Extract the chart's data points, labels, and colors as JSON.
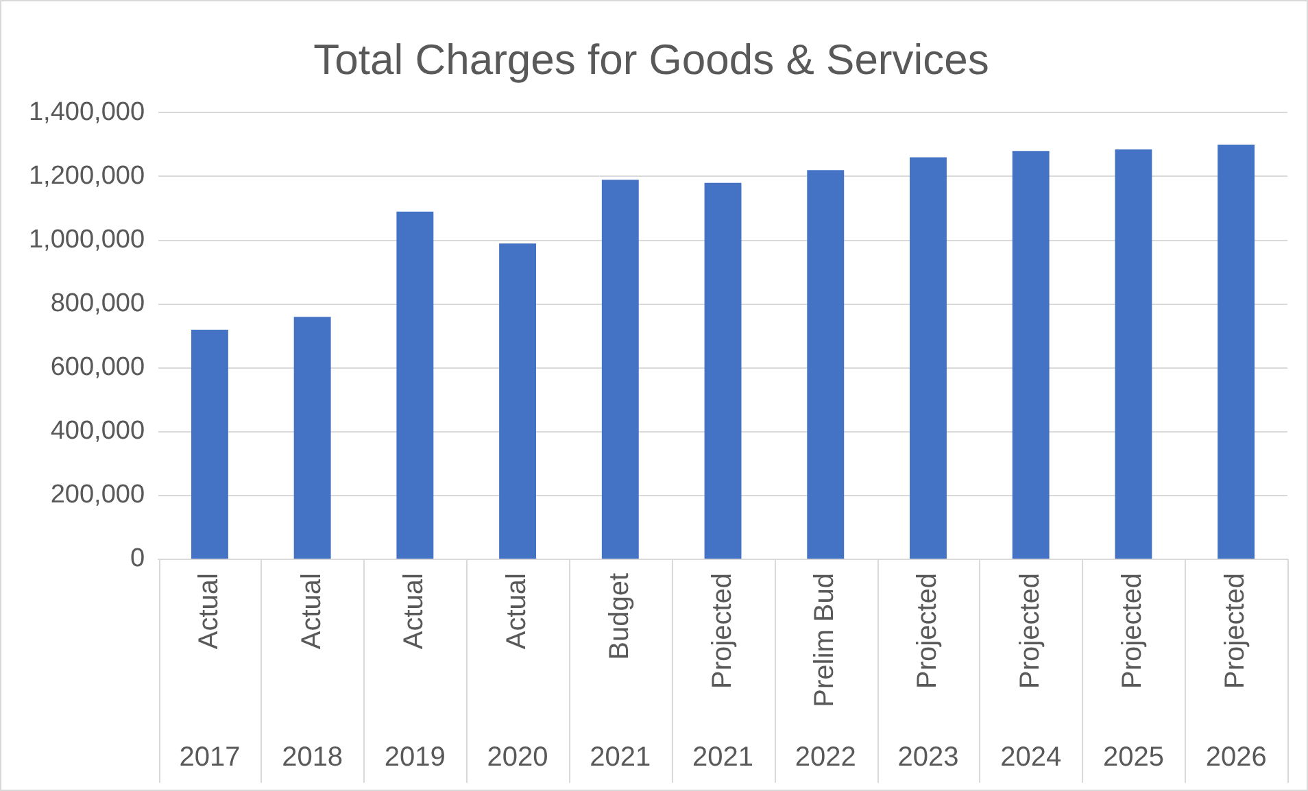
{
  "chart_data": {
    "type": "bar",
    "title": "Total Charges for Goods & Services",
    "categories": [
      "Actual\n2017",
      "Actual\n2018",
      "Actual\n2019",
      "Actual\n2020",
      "Budget\n2021",
      "Projected\n2021",
      "Prelim Bud\n2022",
      "Projected\n2023",
      "Projected\n2024",
      "Projected\n2025",
      "Projected\n2026"
    ],
    "values": [
      720000,
      760000,
      1090000,
      990000,
      1190000,
      1180000,
      1220000,
      1260000,
      1280000,
      1285000,
      1300000
    ],
    "color": "#4472c4",
    "ylim": [
      0,
      1400000
    ],
    "yticks": [
      {
        "value": 0,
        "label": "0"
      },
      {
        "value": 200000,
        "label": "200,000"
      },
      {
        "value": 400000,
        "label": "400,000"
      },
      {
        "value": 600000,
        "label": "600,000"
      },
      {
        "value": 800000,
        "label": "800,000"
      },
      {
        "value": 1000000,
        "label": "1,000,000"
      },
      {
        "value": 1200000,
        "label": "1,200,000"
      },
      {
        "value": 1400000,
        "label": "1,400,000"
      }
    ],
    "grid": "y",
    "legend": false
  }
}
